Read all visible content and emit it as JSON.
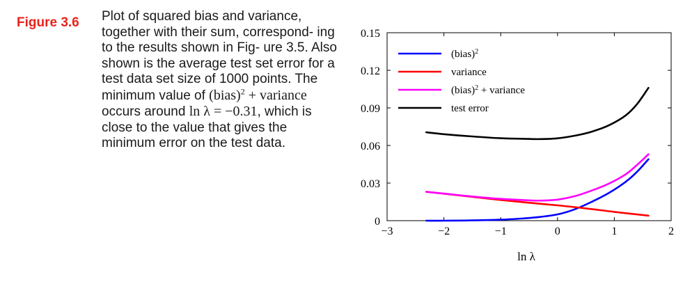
{
  "caption": {
    "label": "Figure 3.6",
    "text_part1": "Plot of squared bias and variance, together with their sum, correspond- ing to the results shown in Fig- ure 3.5. Also shown is the average test set error for a test data set size of 1000 points. The minimum value of ",
    "math_bias": "(bias)",
    "math_exp": "2",
    "math_plus_variance": "+ variance",
    "text_part2": " occurs around ",
    "math_lnlambda": "ln λ = −0.31",
    "text_part3": ", which is close to the value that gives the minimum error on the test data."
  },
  "chart_data": {
    "type": "line",
    "xlabel": "ln λ",
    "ylabel": "",
    "xlim": [
      -3,
      2
    ],
    "ylim": [
      0,
      0.15
    ],
    "x_ticks": [
      "−3",
      "−2",
      "−1",
      "0",
      "1",
      "2"
    ],
    "y_ticks": [
      "0",
      "0.03",
      "0.06",
      "0.09",
      "0.12",
      "0.15"
    ],
    "grid": false,
    "legend_position": "top-left",
    "series": [
      {
        "name": "(bias)",
        "name_sup": "2",
        "color": "#0000ff",
        "x": [
          -2.31,
          -2.0,
          -1.5,
          -1.0,
          -0.6,
          -0.3,
          0.0,
          0.3,
          0.6,
          0.9,
          1.2,
          1.4,
          1.6
        ],
        "y": [
          0.0,
          0.0,
          0.0002,
          0.0008,
          0.0018,
          0.003,
          0.005,
          0.009,
          0.015,
          0.022,
          0.031,
          0.039,
          0.049
        ]
      },
      {
        "name": "variance",
        "color": "#ff0000",
        "x": [
          -2.31,
          -2.0,
          -1.5,
          -1.0,
          -0.5,
          0.0,
          0.5,
          1.0,
          1.6
        ],
        "y": [
          0.023,
          0.0215,
          0.019,
          0.0165,
          0.0143,
          0.0122,
          0.0098,
          0.007,
          0.004
        ]
      },
      {
        "name": "(bias)",
        "name_sup": "2",
        "name_suffix": " + variance",
        "color": "#ff00ff",
        "x": [
          -2.31,
          -2.0,
          -1.5,
          -1.0,
          -0.5,
          -0.31,
          0.0,
          0.3,
          0.6,
          0.9,
          1.2,
          1.4,
          1.6
        ],
        "y": [
          0.023,
          0.0216,
          0.0193,
          0.0174,
          0.0162,
          0.016,
          0.0168,
          0.0195,
          0.024,
          0.0295,
          0.037,
          0.0445,
          0.053
        ]
      },
      {
        "name": "test error",
        "color": "#000000",
        "x": [
          -2.31,
          -2.0,
          -1.5,
          -1.0,
          -0.5,
          -0.3,
          0.0,
          0.3,
          0.6,
          0.9,
          1.2,
          1.4,
          1.6
        ],
        "y": [
          0.0705,
          0.069,
          0.0672,
          0.0658,
          0.0652,
          0.0651,
          0.0657,
          0.0678,
          0.071,
          0.076,
          0.084,
          0.093,
          0.106
        ]
      }
    ]
  }
}
